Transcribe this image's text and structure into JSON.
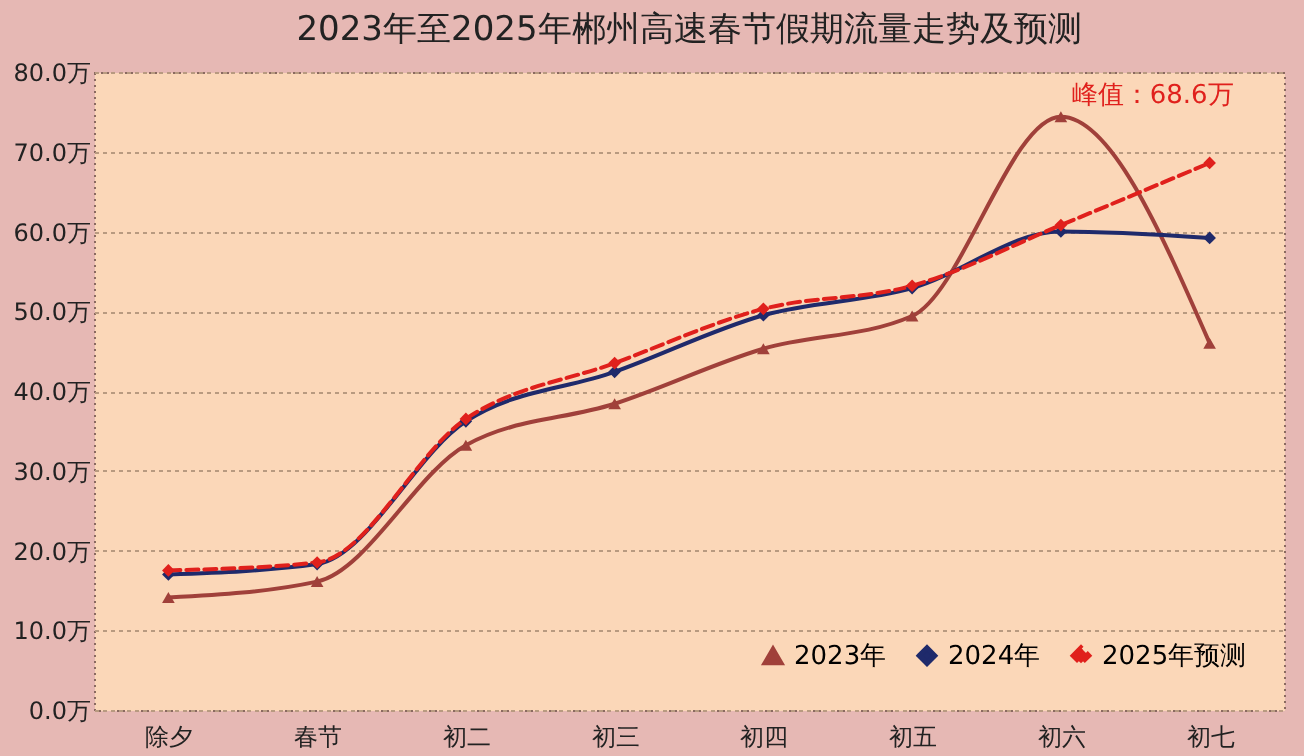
{
  "chart_data": {
    "type": "line",
    "title": "2023年至2025年郴州高速春节假期流量走势及预测",
    "categories": [
      "除夕",
      "春节",
      "初二",
      "初三",
      "初四",
      "初五",
      "初六",
      "初七"
    ],
    "series": [
      {
        "name": "2023年",
        "color": "#a0403a",
        "marker": "triangle",
        "line_style": "solid",
        "values": [
          14.1,
          16.1,
          33.2,
          38.4,
          45.3,
          49.4,
          74.4,
          46.0
        ]
      },
      {
        "name": "2024年",
        "color": "#1f2a6b",
        "marker": "diamond",
        "line_style": "solid",
        "values": [
          17.0,
          18.3,
          36.2,
          42.4,
          49.5,
          52.9,
          60.0,
          59.2
        ]
      },
      {
        "name": "2025年预测",
        "color": "#e0201c",
        "marker": "diamond",
        "line_style": "dashed",
        "values": [
          17.5,
          18.5,
          36.5,
          43.5,
          50.3,
          53.2,
          60.8,
          68.6
        ]
      }
    ],
    "ylim": [
      0,
      80
    ],
    "yticks": [
      {
        "value": 0,
        "label": "0.0万"
      },
      {
        "value": 10,
        "label": "10.0万"
      },
      {
        "value": 20,
        "label": "20.0万"
      },
      {
        "value": 30,
        "label": "30.0万"
      },
      {
        "value": 40,
        "label": "40.0万"
      },
      {
        "value": 50,
        "label": "50.0万"
      },
      {
        "value": 60,
        "label": "60.0万"
      },
      {
        "value": 70,
        "label": "70.0万"
      },
      {
        "value": 80,
        "label": "80.0万"
      }
    ],
    "grid": "y",
    "legend": "bottom right",
    "annotations": [
      {
        "text": "峰值：68.6万",
        "x": "初七",
        "y": 68.6
      }
    ]
  }
}
